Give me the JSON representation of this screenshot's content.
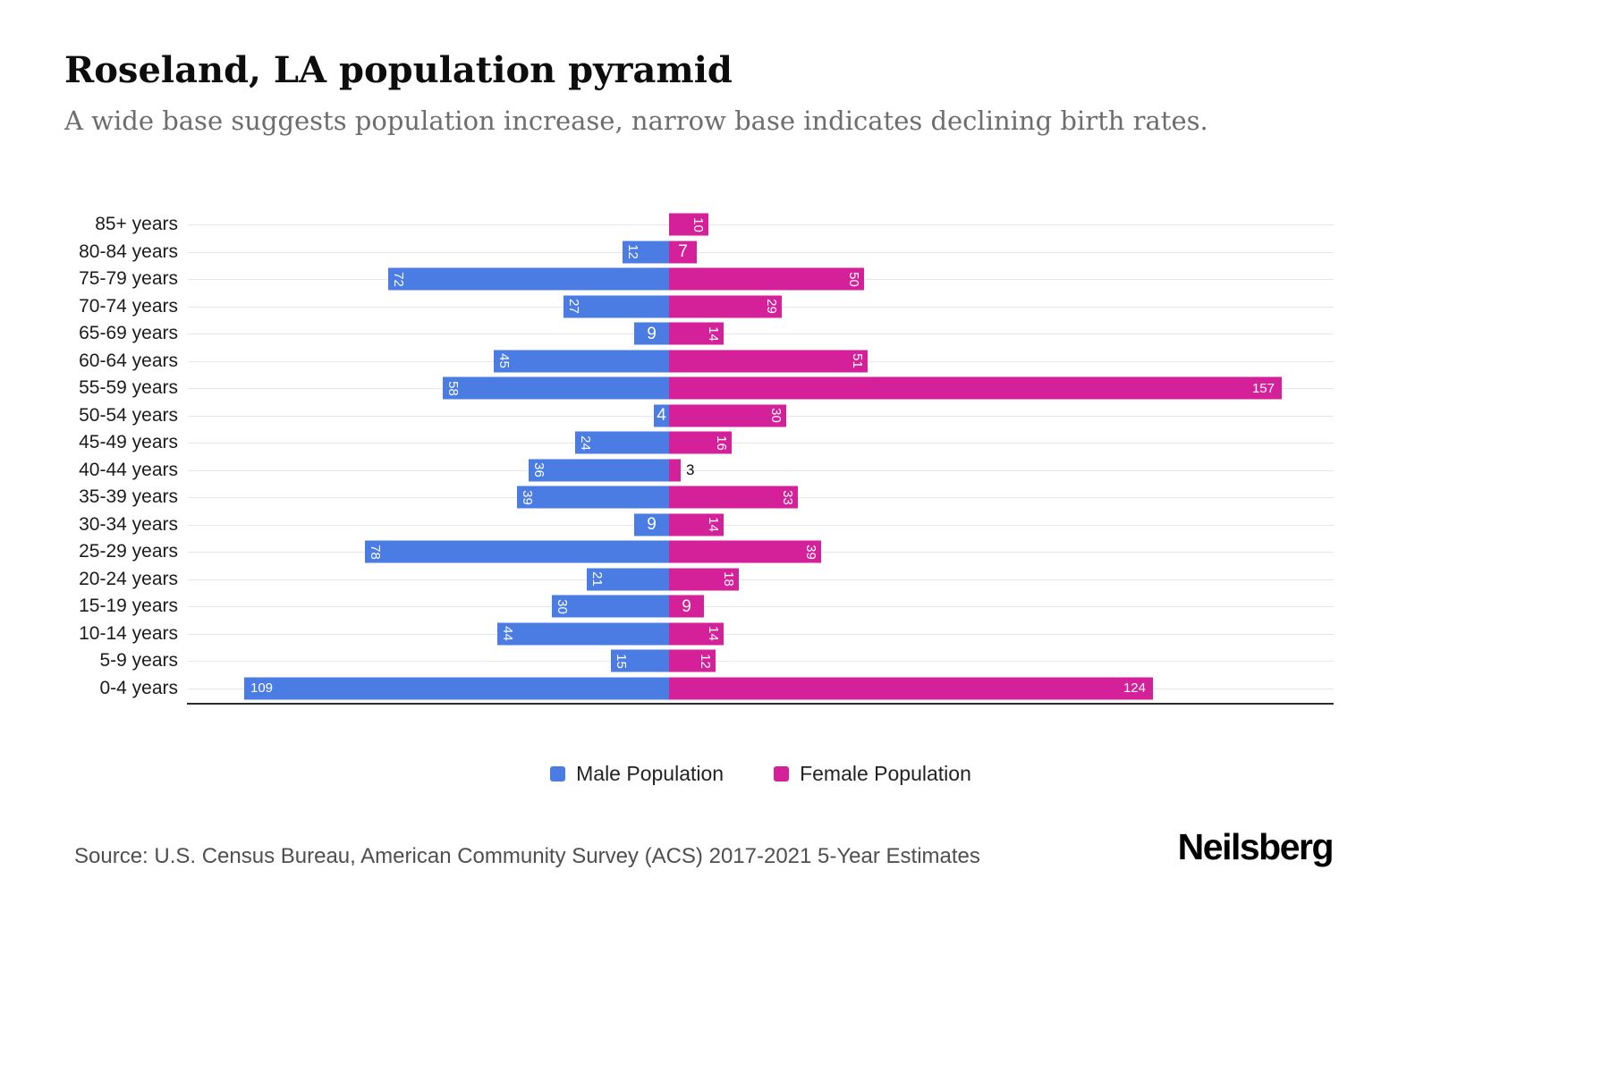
{
  "header": {
    "title": "Roseland, LA population pyramid",
    "subtitle": "A wide base suggests population increase, narrow base indicates declining birth rates."
  },
  "chart_data": {
    "type": "bar",
    "variant": "population-pyramid",
    "orientation": "horizontal",
    "categories": [
      "85+ years",
      "80-84 years",
      "75-79 years",
      "70-74 years",
      "65-69 years",
      "60-64 years",
      "55-59 years",
      "50-54 years",
      "45-49 years",
      "40-44 years",
      "35-39 years",
      "30-34 years",
      "25-29 years",
      "20-24 years",
      "15-19 years",
      "10-14 years",
      "5-9 years",
      "0-4 years"
    ],
    "series": [
      {
        "name": "Male Population",
        "color": "#4a7ce4",
        "values": [
          0,
          12,
          72,
          27,
          9,
          45,
          58,
          4,
          24,
          36,
          39,
          9,
          78,
          21,
          30,
          44,
          15,
          109
        ]
      },
      {
        "name": "Female Population",
        "color": "#d4219a",
        "values": [
          10,
          7,
          50,
          29,
          14,
          51,
          157,
          30,
          16,
          3,
          33,
          14,
          39,
          18,
          9,
          14,
          12,
          124
        ]
      }
    ],
    "value_axis_max_per_side": 160,
    "grid": "horizontal-light",
    "legend_position": "bottom",
    "bar_labels": "inside-white"
  },
  "legend": {
    "male_label": "Male Population",
    "female_label": "Female Population"
  },
  "footer": {
    "source": "Source: U.S. Census Bureau, American Community Survey (ACS) 2017-2021 5-Year Estimates",
    "brand": "Neilsberg"
  }
}
